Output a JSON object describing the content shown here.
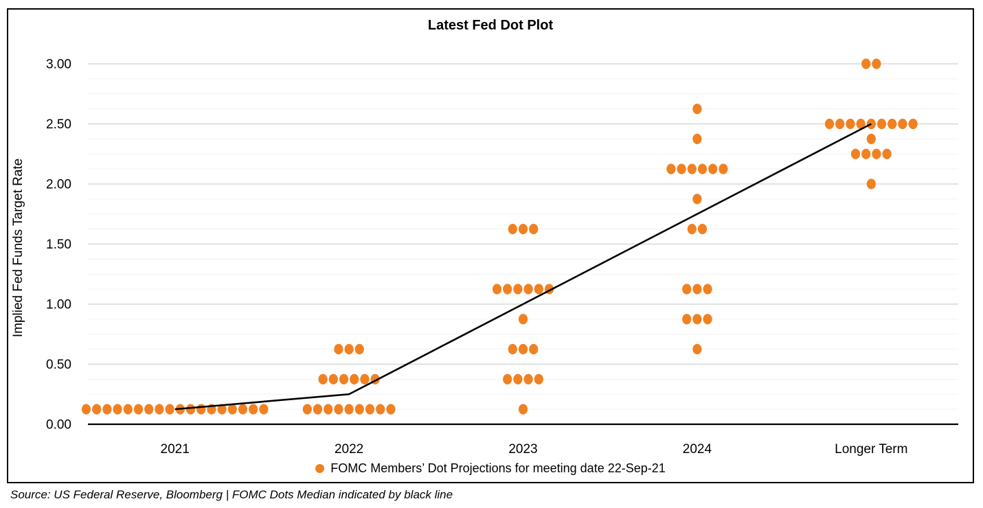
{
  "source_note": "Source: US Federal Reserve, Bloomberg | FOMC Dots Median indicated by black line",
  "colors": {
    "dot_orange": "#F08122",
    "median_black": "#000000",
    "major_grid": "#D8D8D8",
    "minor_grid": "#F1F1F1",
    "axis_line": "#000000",
    "text": "#000000"
  },
  "chart_data": {
    "type": "scatter",
    "title": "Latest Fed Dot Plot",
    "xlabel": "",
    "ylabel": "Implied Fed Funds Target Rate",
    "ylim": [
      0,
      3.0
    ],
    "ytick_labels": [
      "0.00",
      "0.50",
      "1.00",
      "1.50",
      "2.00",
      "2.50",
      "3.00"
    ],
    "ytick_step_major": 0.5,
    "ytick_step_minor": 0.125,
    "grid": true,
    "legend_position": "bottom",
    "categories": [
      "2021",
      "2022",
      "2023",
      "2024",
      "Longer Term"
    ],
    "series": [
      {
        "name": "FOMC Members’ Dot Projections for meeting date 22-Sep-21",
        "marker": "circle",
        "color": "#F08122",
        "points": [
          {
            "category": "2021",
            "rate": 0.125,
            "count": 18
          },
          {
            "category": "2022",
            "rate": 0.625,
            "count": 3
          },
          {
            "category": "2022",
            "rate": 0.375,
            "count": 6
          },
          {
            "category": "2022",
            "rate": 0.125,
            "count": 9
          },
          {
            "category": "2023",
            "rate": 1.625,
            "count": 3
          },
          {
            "category": "2023",
            "rate": 1.125,
            "count": 6
          },
          {
            "category": "2023",
            "rate": 0.875,
            "count": 1
          },
          {
            "category": "2023",
            "rate": 0.625,
            "count": 3
          },
          {
            "category": "2023",
            "rate": 0.375,
            "count": 4
          },
          {
            "category": "2023",
            "rate": 0.125,
            "count": 1
          },
          {
            "category": "2024",
            "rate": 2.625,
            "count": 1
          },
          {
            "category": "2024",
            "rate": 2.375,
            "count": 1
          },
          {
            "category": "2024",
            "rate": 2.125,
            "count": 6
          },
          {
            "category": "2024",
            "rate": 1.875,
            "count": 1
          },
          {
            "category": "2024",
            "rate": 1.625,
            "count": 2
          },
          {
            "category": "2024",
            "rate": 1.125,
            "count": 3
          },
          {
            "category": "2024",
            "rate": 0.875,
            "count": 3
          },
          {
            "category": "2024",
            "rate": 0.625,
            "count": 1
          },
          {
            "category": "Longer Term",
            "rate": 3.0,
            "count": 2
          },
          {
            "category": "Longer Term",
            "rate": 2.5,
            "count": 9
          },
          {
            "category": "Longer Term",
            "rate": 2.375,
            "count": 1
          },
          {
            "category": "Longer Term",
            "rate": 2.25,
            "count": 4
          },
          {
            "category": "Longer Term",
            "rate": 2.0,
            "count": 1
          }
        ]
      }
    ],
    "median_line": {
      "name": "FOMC Dots Median",
      "color": "#000000",
      "values": [
        0.125,
        0.25,
        1.0,
        1.75,
        2.5
      ]
    }
  }
}
